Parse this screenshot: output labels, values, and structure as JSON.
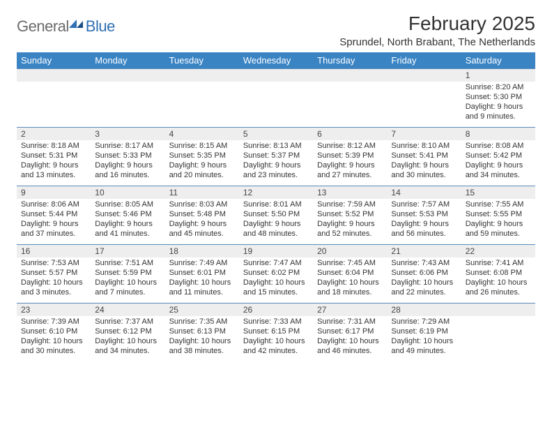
{
  "logo": {
    "textGray": "General",
    "textBlue": "Blue"
  },
  "title": "February 2025",
  "location": "Sprundel, North Brabant, The Netherlands",
  "colors": {
    "headerBg": "#3a84c4",
    "headerText": "#ffffff",
    "dayRowBg": "#eeeeee",
    "borderTop": "#5a8bb8",
    "bodyText": "#333333",
    "logoGray": "#6b6b6b",
    "logoBlue": "#2f6fb3"
  },
  "weekdays": [
    "Sunday",
    "Monday",
    "Tuesday",
    "Wednesday",
    "Thursday",
    "Friday",
    "Saturday"
  ],
  "weeks": [
    [
      {
        "n": "",
        "sr": "",
        "ss": "",
        "dl": ""
      },
      {
        "n": "",
        "sr": "",
        "ss": "",
        "dl": ""
      },
      {
        "n": "",
        "sr": "",
        "ss": "",
        "dl": ""
      },
      {
        "n": "",
        "sr": "",
        "ss": "",
        "dl": ""
      },
      {
        "n": "",
        "sr": "",
        "ss": "",
        "dl": ""
      },
      {
        "n": "",
        "sr": "",
        "ss": "",
        "dl": ""
      },
      {
        "n": "1",
        "sr": "Sunrise: 8:20 AM",
        "ss": "Sunset: 5:30 PM",
        "dl": "Daylight: 9 hours and 9 minutes."
      }
    ],
    [
      {
        "n": "2",
        "sr": "Sunrise: 8:18 AM",
        "ss": "Sunset: 5:31 PM",
        "dl": "Daylight: 9 hours and 13 minutes."
      },
      {
        "n": "3",
        "sr": "Sunrise: 8:17 AM",
        "ss": "Sunset: 5:33 PM",
        "dl": "Daylight: 9 hours and 16 minutes."
      },
      {
        "n": "4",
        "sr": "Sunrise: 8:15 AM",
        "ss": "Sunset: 5:35 PM",
        "dl": "Daylight: 9 hours and 20 minutes."
      },
      {
        "n": "5",
        "sr": "Sunrise: 8:13 AM",
        "ss": "Sunset: 5:37 PM",
        "dl": "Daylight: 9 hours and 23 minutes."
      },
      {
        "n": "6",
        "sr": "Sunrise: 8:12 AM",
        "ss": "Sunset: 5:39 PM",
        "dl": "Daylight: 9 hours and 27 minutes."
      },
      {
        "n": "7",
        "sr": "Sunrise: 8:10 AM",
        "ss": "Sunset: 5:41 PM",
        "dl": "Daylight: 9 hours and 30 minutes."
      },
      {
        "n": "8",
        "sr": "Sunrise: 8:08 AM",
        "ss": "Sunset: 5:42 PM",
        "dl": "Daylight: 9 hours and 34 minutes."
      }
    ],
    [
      {
        "n": "9",
        "sr": "Sunrise: 8:06 AM",
        "ss": "Sunset: 5:44 PM",
        "dl": "Daylight: 9 hours and 37 minutes."
      },
      {
        "n": "10",
        "sr": "Sunrise: 8:05 AM",
        "ss": "Sunset: 5:46 PM",
        "dl": "Daylight: 9 hours and 41 minutes."
      },
      {
        "n": "11",
        "sr": "Sunrise: 8:03 AM",
        "ss": "Sunset: 5:48 PM",
        "dl": "Daylight: 9 hours and 45 minutes."
      },
      {
        "n": "12",
        "sr": "Sunrise: 8:01 AM",
        "ss": "Sunset: 5:50 PM",
        "dl": "Daylight: 9 hours and 48 minutes."
      },
      {
        "n": "13",
        "sr": "Sunrise: 7:59 AM",
        "ss": "Sunset: 5:52 PM",
        "dl": "Daylight: 9 hours and 52 minutes."
      },
      {
        "n": "14",
        "sr": "Sunrise: 7:57 AM",
        "ss": "Sunset: 5:53 PM",
        "dl": "Daylight: 9 hours and 56 minutes."
      },
      {
        "n": "15",
        "sr": "Sunrise: 7:55 AM",
        "ss": "Sunset: 5:55 PM",
        "dl": "Daylight: 9 hours and 59 minutes."
      }
    ],
    [
      {
        "n": "16",
        "sr": "Sunrise: 7:53 AM",
        "ss": "Sunset: 5:57 PM",
        "dl": "Daylight: 10 hours and 3 minutes."
      },
      {
        "n": "17",
        "sr": "Sunrise: 7:51 AM",
        "ss": "Sunset: 5:59 PM",
        "dl": "Daylight: 10 hours and 7 minutes."
      },
      {
        "n": "18",
        "sr": "Sunrise: 7:49 AM",
        "ss": "Sunset: 6:01 PM",
        "dl": "Daylight: 10 hours and 11 minutes."
      },
      {
        "n": "19",
        "sr": "Sunrise: 7:47 AM",
        "ss": "Sunset: 6:02 PM",
        "dl": "Daylight: 10 hours and 15 minutes."
      },
      {
        "n": "20",
        "sr": "Sunrise: 7:45 AM",
        "ss": "Sunset: 6:04 PM",
        "dl": "Daylight: 10 hours and 18 minutes."
      },
      {
        "n": "21",
        "sr": "Sunrise: 7:43 AM",
        "ss": "Sunset: 6:06 PM",
        "dl": "Daylight: 10 hours and 22 minutes."
      },
      {
        "n": "22",
        "sr": "Sunrise: 7:41 AM",
        "ss": "Sunset: 6:08 PM",
        "dl": "Daylight: 10 hours and 26 minutes."
      }
    ],
    [
      {
        "n": "23",
        "sr": "Sunrise: 7:39 AM",
        "ss": "Sunset: 6:10 PM",
        "dl": "Daylight: 10 hours and 30 minutes."
      },
      {
        "n": "24",
        "sr": "Sunrise: 7:37 AM",
        "ss": "Sunset: 6:12 PM",
        "dl": "Daylight: 10 hours and 34 minutes."
      },
      {
        "n": "25",
        "sr": "Sunrise: 7:35 AM",
        "ss": "Sunset: 6:13 PM",
        "dl": "Daylight: 10 hours and 38 minutes."
      },
      {
        "n": "26",
        "sr": "Sunrise: 7:33 AM",
        "ss": "Sunset: 6:15 PM",
        "dl": "Daylight: 10 hours and 42 minutes."
      },
      {
        "n": "27",
        "sr": "Sunrise: 7:31 AM",
        "ss": "Sunset: 6:17 PM",
        "dl": "Daylight: 10 hours and 46 minutes."
      },
      {
        "n": "28",
        "sr": "Sunrise: 7:29 AM",
        "ss": "Sunset: 6:19 PM",
        "dl": "Daylight: 10 hours and 49 minutes."
      },
      {
        "n": "",
        "sr": "",
        "ss": "",
        "dl": ""
      }
    ]
  ]
}
